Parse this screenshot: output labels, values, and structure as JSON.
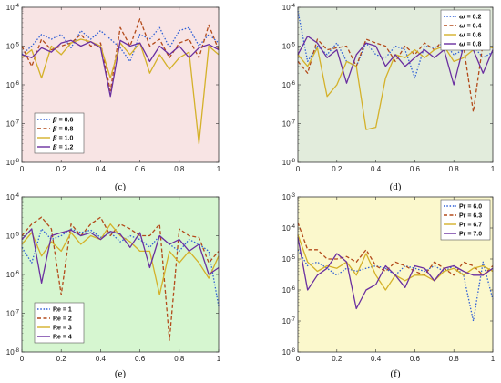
{
  "chart_data": [
    {
      "type": "line",
      "label": "(c)",
      "scale": "log",
      "ylim": [
        1e-08,
        0.0001
      ],
      "xlim": [
        0,
        1
      ],
      "background": "#f8e4e4",
      "legend_position": "bottom-left",
      "x_ticks": [
        "0",
        "0.2",
        "0.4",
        "0.6",
        "0.8",
        "1"
      ],
      "y_ticks": [
        {
          "base": "10",
          "exp": "-8"
        },
        {
          "base": "10",
          "exp": "-7"
        },
        {
          "base": "10",
          "exp": "-6"
        },
        {
          "base": "10",
          "exp": "-5"
        },
        {
          "base": "10",
          "exp": "-4"
        }
      ],
      "x": [
        0,
        0.05,
        0.1,
        0.15,
        0.2,
        0.25,
        0.3,
        0.35,
        0.4,
        0.45,
        0.5,
        0.55,
        0.6,
        0.65,
        0.7,
        0.75,
        0.8,
        0.85,
        0.9,
        0.95,
        1
      ],
      "series": [
        {
          "name_prefix": "β",
          "name_suffix": " = 0.6",
          "color": "#2f5fd6",
          "dash": "1.5,1.8",
          "values": [
            6e-06,
            1e-05,
            2e-05,
            1.5e-05,
            2e-05,
            9e-06,
            2.5e-05,
            1.5e-05,
            2.5e-05,
            1.5e-05,
            9e-06,
            4e-06,
            2e-05,
            1.5e-05,
            3e-05,
            9e-06,
            2.5e-05,
            3e-05,
            1e-05,
            2e-05,
            1.2e-05
          ]
        },
        {
          "name_prefix": "β",
          "name_suffix": " = 0.8",
          "color": "#b34a1a",
          "dash": "4,2.5",
          "values": [
            1e-05,
            3e-06,
            1.5e-05,
            8e-06,
            1e-05,
            1.2e-05,
            2e-05,
            1e-05,
            1.2e-05,
            7e-07,
            3e-05,
            1e-05,
            5e-05,
            1e-05,
            1.5e-05,
            5e-06,
            1.2e-05,
            1.5e-05,
            5e-06,
            3.5e-05,
            8e-06
          ]
        },
        {
          "name_prefix": "β",
          "name_suffix": " = 1.0",
          "color": "#d4b12a",
          "dash": "",
          "values": [
            5e-06,
            8e-06,
            1.5e-06,
            1e-05,
            6e-06,
            1.2e-05,
            1.5e-05,
            1.3e-05,
            1e-05,
            1.5e-06,
            1.2e-05,
            6e-06,
            1.2e-05,
            2e-06,
            6e-06,
            2.5e-06,
            5e-06,
            7e-06,
            3e-08,
            1e-05,
            6e-06
          ]
        },
        {
          "name_prefix": "β",
          "name_suffix": " = 1.2",
          "color": "#6a2fa0",
          "dash": "",
          "values": [
            6e-06,
            5e-06,
            9e-06,
            7e-06,
            1.2e-05,
            1.4e-05,
            1e-05,
            1.3e-05,
            9e-06,
            5e-07,
            1.4e-05,
            1e-05,
            1.2e-05,
            4e-06,
            1e-05,
            6e-06,
            1e-05,
            5e-06,
            9e-06,
            1.1e-05,
            8e-06
          ]
        }
      ]
    },
    {
      "type": "line",
      "label": "(d)",
      "scale": "log",
      "ylim": [
        1e-08,
        0.0001
      ],
      "xlim": [
        0,
        1
      ],
      "background": "#e2ecdc",
      "legend_position": "top-right",
      "x_ticks": [
        "0",
        "0.2",
        "0.4",
        "0.6",
        "0.8",
        "1"
      ],
      "y_ticks": [
        {
          "base": "10",
          "exp": "-8"
        },
        {
          "base": "10",
          "exp": "-7"
        },
        {
          "base": "10",
          "exp": "-6"
        },
        {
          "base": "10",
          "exp": "-5"
        },
        {
          "base": "10",
          "exp": "-4"
        }
      ],
      "x": [
        0,
        0.05,
        0.1,
        0.15,
        0.2,
        0.25,
        0.3,
        0.35,
        0.4,
        0.45,
        0.5,
        0.55,
        0.6,
        0.65,
        0.7,
        0.75,
        0.8,
        0.85,
        0.9,
        0.95,
        1
      ],
      "series": [
        {
          "name_prefix": "ω",
          "name_suffix": " = 0.2",
          "color": "#2f5fd6",
          "dash": "1.5,1.8",
          "values": [
            8e-05,
            4e-06,
            1e-05,
            6e-06,
            1.2e-05,
            4e-06,
            3e-06,
            1.2e-05,
            6e-06,
            5e-06,
            1e-05,
            8e-06,
            1.5e-06,
            1e-05,
            9e-06,
            1.2e-05,
            6e-06,
            8e-06,
            1e-05,
            5e-06,
            7e-06
          ]
        },
        {
          "name_prefix": "ω",
          "name_suffix": " = 0.4",
          "color": "#b34a1a",
          "dash": "4,2.5",
          "values": [
            4e-06,
            2e-06,
            1.5e-05,
            8e-06,
            9e-06,
            1e-05,
            3e-06,
            1.5e-05,
            1.2e-05,
            1e-05,
            4e-06,
            1e-05,
            6e-06,
            1.2e-05,
            8e-06,
            1.5e-05,
            1e-05,
            1e-05,
            2e-07,
            1.2e-05,
            9e-06
          ]
        },
        {
          "name_prefix": "ω",
          "name_suffix": " = 0.6",
          "color": "#d4b12a",
          "dash": "",
          "values": [
            6e-06,
            3e-06,
            9e-06,
            5e-07,
            1e-06,
            4e-06,
            3e-06,
            7e-08,
            8e-08,
            1.5e-06,
            6e-06,
            5e-06,
            8e-06,
            5e-06,
            8e-06,
            1e-05,
            4e-06,
            5e-06,
            8e-06,
            1e-05,
            9e-06
          ]
        },
        {
          "name_prefix": "ω",
          "name_suffix": " = 0.8",
          "color": "#6a2fa0",
          "dash": "",
          "values": [
            6e-06,
            1.8e-05,
            1.2e-05,
            5e-06,
            8e-06,
            1.1e-06,
            6e-06,
            1.2e-05,
            1e-05,
            3e-06,
            6e-06,
            3e-06,
            5e-06,
            8e-06,
            5e-06,
            8e-06,
            1e-06,
            1e-05,
            8e-06,
            2e-06,
            8e-06
          ]
        }
      ]
    },
    {
      "type": "line",
      "label": "(e)",
      "scale": "log",
      "ylim": [
        1e-08,
        0.0001
      ],
      "xlim": [
        0,
        1
      ],
      "background": "#d6f6d0",
      "legend_position": "bottom-left",
      "x_ticks": [
        "0",
        "0.2",
        "0.4",
        "0.6",
        "0.8",
        "1"
      ],
      "y_ticks": [
        {
          "base": "10",
          "exp": "-8"
        },
        {
          "base": "10",
          "exp": "-7"
        },
        {
          "base": "10",
          "exp": "-6"
        },
        {
          "base": "10",
          "exp": "-5"
        },
        {
          "base": "10",
          "exp": "-4"
        }
      ],
      "x": [
        0,
        0.05,
        0.1,
        0.15,
        0.2,
        0.25,
        0.3,
        0.35,
        0.4,
        0.45,
        0.5,
        0.55,
        0.6,
        0.65,
        0.7,
        0.75,
        0.8,
        0.85,
        0.9,
        0.95,
        1
      ],
      "series": [
        {
          "name_prefix": "",
          "name_suffix": "Re = 1",
          "color": "#2f5fd6",
          "dash": "1.5,1.8",
          "values": [
            5e-06,
            2e-06,
            1.5e-05,
            8e-06,
            1e-05,
            1.5e-05,
            1.2e-05,
            1.4e-05,
            9e-06,
            1.2e-05,
            7e-06,
            1e-05,
            8e-06,
            5e-06,
            1e-05,
            6e-06,
            4e-06,
            8e-06,
            6e-06,
            4e-06,
            1.5e-07
          ]
        },
        {
          "name_prefix": "",
          "name_suffix": "Re = 2",
          "color": "#b34a1a",
          "dash": "4,2.5",
          "values": [
            1e-05,
            2e-05,
            3e-05,
            1.5e-05,
            3e-07,
            2e-05,
            1e-05,
            2e-05,
            3e-05,
            1e-05,
            2e-05,
            1.5e-05,
            1e-05,
            1e-05,
            2e-05,
            2e-08,
            1.5e-05,
            1e-05,
            9e-06,
            2e-06,
            4e-06
          ]
        },
        {
          "name_prefix": "",
          "name_suffix": "Re = 3",
          "color": "#d4b12a",
          "dash": "",
          "values": [
            6e-06,
            1.2e-05,
            3e-06,
            7e-06,
            4e-06,
            1.2e-05,
            6e-06,
            1e-05,
            8e-06,
            2e-05,
            1e-05,
            7e-06,
            4e-06,
            4e-06,
            3e-07,
            4e-06,
            2e-06,
            4e-06,
            2e-06,
            8e-07,
            3e-06
          ]
        },
        {
          "name_prefix": "",
          "name_suffix": "Re = 4",
          "color": "#6a2fa0",
          "dash": "",
          "values": [
            8e-06,
            1.5e-05,
            6e-07,
            1e-05,
            1.2e-05,
            1.4e-05,
            1e-05,
            1.2e-05,
            8e-06,
            1.3e-05,
            1.1e-05,
            5e-06,
            1.2e-05,
            1.5e-06,
            1e-05,
            6e-06,
            8e-06,
            4e-06,
            6e-06,
            1e-06,
            1.5e-06
          ]
        }
      ]
    },
    {
      "type": "line",
      "label": "(f)",
      "scale": "log",
      "ylim": [
        1e-08,
        0.001
      ],
      "xlim": [
        0,
        1
      ],
      "background": "#fbf8cc",
      "legend_position": "top-right",
      "x_ticks": [
        "0",
        "0.2",
        "0.4",
        "0.6",
        "0.8",
        "1"
      ],
      "y_ticks": [
        {
          "base": "10",
          "exp": "-8"
        },
        {
          "base": "10",
          "exp": "-7"
        },
        {
          "base": "10",
          "exp": "-6"
        },
        {
          "base": "10",
          "exp": "-5"
        },
        {
          "base": "10",
          "exp": "-4"
        },
        {
          "base": "10",
          "exp": "-3"
        }
      ],
      "x": [
        0,
        0.05,
        0.1,
        0.15,
        0.2,
        0.25,
        0.3,
        0.35,
        0.4,
        0.45,
        0.5,
        0.55,
        0.6,
        0.65,
        0.7,
        0.75,
        0.8,
        0.85,
        0.9,
        0.95,
        1
      ],
      "series": [
        {
          "name_prefix": "",
          "name_suffix": "Pr = 6.0",
          "color": "#2f5fd6",
          "dash": "1.5,1.8",
          "values": [
            2e-05,
            6e-06,
            8e-06,
            5e-06,
            3e-06,
            5e-06,
            4e-06,
            5e-06,
            6e-06,
            5e-06,
            3e-06,
            6e-06,
            5e-06,
            4e-06,
            6e-06,
            4e-06,
            6e-06,
            3e-06,
            1e-07,
            8e-06,
            5e-07
          ]
        },
        {
          "name_prefix": "",
          "name_suffix": "Pr = 6.3",
          "color": "#b34a1a",
          "dash": "4,2.5",
          "values": [
            0.00015,
            2e-05,
            2e-05,
            1e-05,
            1e-05,
            1.2e-05,
            8e-06,
            2e-05,
            6e-06,
            4e-06,
            8e-06,
            6e-06,
            4e-06,
            3e-06,
            8e-06,
            5e-06,
            3e-06,
            8e-06,
            6e-06,
            3e-06,
            6e-06
          ]
        },
        {
          "name_prefix": "",
          "name_suffix": "Pr = 6.7",
          "color": "#d4b12a",
          "dash": "",
          "values": [
            6e-05,
            8e-06,
            4e-06,
            6e-06,
            5e-06,
            8e-06,
            3e-06,
            1.5e-05,
            3e-06,
            1e-06,
            3e-06,
            2e-06,
            3e-06,
            3e-06,
            2e-06,
            4e-06,
            5e-06,
            3e-06,
            5e-06,
            6e-06,
            4e-06
          ]
        },
        {
          "name_prefix": "",
          "name_suffix": "Pr = 7.0",
          "color": "#6a2fa0",
          "dash": "",
          "values": [
            5e-05,
            1e-06,
            3e-06,
            5e-06,
            1.5e-05,
            8e-06,
            2.5e-07,
            1e-06,
            1.5e-06,
            6e-06,
            3e-06,
            1.2e-06,
            6e-06,
            5e-06,
            2e-06,
            5e-06,
            6e-06,
            4e-06,
            3e-06,
            3e-06,
            5e-06
          ]
        }
      ]
    }
  ]
}
